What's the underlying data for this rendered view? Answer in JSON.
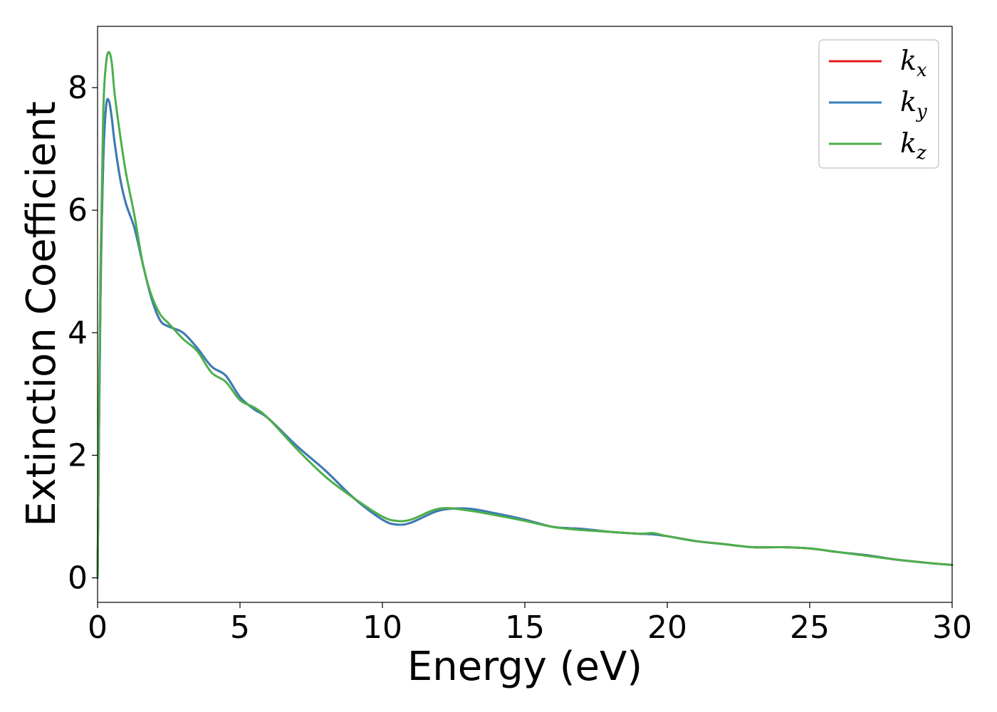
{
  "chart_data": {
    "type": "line",
    "xlabel": "Energy (eV)",
    "ylabel": "Extinction Coefficient",
    "xlim": [
      0,
      30
    ],
    "ylim": [
      -0.4,
      9.0
    ],
    "xticks": [
      0,
      5,
      10,
      15,
      20,
      25,
      30
    ],
    "yticks": [
      0,
      2,
      4,
      6,
      8
    ],
    "xtick_labels": [
      "0",
      "5",
      "10",
      "15",
      "20",
      "25",
      "30"
    ],
    "ytick_labels": [
      "0",
      "2",
      "4",
      "6",
      "8"
    ],
    "grid": false,
    "legend_position": "top-right",
    "series": [
      {
        "name": "kx",
        "legend_base": "k",
        "legend_sub": "x",
        "color": "#e41a1c",
        "x": [
          0,
          0.1,
          0.2,
          0.3,
          0.4,
          0.5,
          0.6,
          0.8,
          1.0,
          1.3,
          1.6,
          1.9,
          2.2,
          2.5,
          3.0,
          3.5,
          4.0,
          4.5,
          5.0,
          5.5,
          6.0,
          7.0,
          8.0,
          9.0,
          10.0,
          10.5,
          11.0,
          12.0,
          13.0,
          14.0,
          15.0,
          16.0,
          17.0,
          18.0,
          19.0,
          19.5,
          20.0,
          21.0,
          22.0,
          23.0,
          24.0,
          25.0,
          26.0,
          27.0,
          28.0,
          29.0,
          30.0
        ],
        "y": [
          0.0,
          4.5,
          6.8,
          7.7,
          7.78,
          7.5,
          7.1,
          6.5,
          6.1,
          5.7,
          5.1,
          4.55,
          4.2,
          4.1,
          4.0,
          3.75,
          3.45,
          3.3,
          2.95,
          2.75,
          2.6,
          2.15,
          1.75,
          1.3,
          0.95,
          0.87,
          0.9,
          1.1,
          1.13,
          1.05,
          0.95,
          0.83,
          0.8,
          0.75,
          0.72,
          0.71,
          0.68,
          0.6,
          0.55,
          0.5,
          0.5,
          0.48,
          0.42,
          0.37,
          0.3,
          0.25,
          0.21
        ]
      },
      {
        "name": "ky",
        "legend_base": "k",
        "legend_sub": "y",
        "color": "#377eb8",
        "x": [
          0,
          0.1,
          0.2,
          0.3,
          0.4,
          0.5,
          0.6,
          0.8,
          1.0,
          1.3,
          1.6,
          1.9,
          2.2,
          2.5,
          3.0,
          3.5,
          4.0,
          4.5,
          5.0,
          5.5,
          6.0,
          7.0,
          8.0,
          9.0,
          10.0,
          10.5,
          11.0,
          12.0,
          13.0,
          14.0,
          15.0,
          16.0,
          17.0,
          18.0,
          19.0,
          19.5,
          20.0,
          21.0,
          22.0,
          23.0,
          24.0,
          25.0,
          26.0,
          27.0,
          28.0,
          29.0,
          30.0
        ],
        "y": [
          0.0,
          4.5,
          6.8,
          7.7,
          7.78,
          7.5,
          7.1,
          6.5,
          6.1,
          5.7,
          5.1,
          4.55,
          4.2,
          4.1,
          4.0,
          3.75,
          3.45,
          3.3,
          2.95,
          2.75,
          2.6,
          2.15,
          1.75,
          1.3,
          0.95,
          0.87,
          0.9,
          1.1,
          1.13,
          1.05,
          0.95,
          0.83,
          0.8,
          0.75,
          0.72,
          0.71,
          0.68,
          0.6,
          0.55,
          0.5,
          0.5,
          0.48,
          0.42,
          0.37,
          0.3,
          0.25,
          0.21
        ]
      },
      {
        "name": "kz",
        "legend_base": "k",
        "legend_sub": "z",
        "color": "#4daf4a",
        "x": [
          0,
          0.1,
          0.2,
          0.3,
          0.4,
          0.5,
          0.6,
          0.8,
          1.0,
          1.3,
          1.6,
          1.9,
          2.2,
          2.5,
          3.0,
          3.5,
          4.0,
          4.5,
          5.0,
          5.5,
          6.0,
          7.0,
          8.0,
          9.0,
          10.0,
          10.5,
          11.0,
          12.0,
          13.0,
          14.0,
          15.0,
          16.0,
          17.0,
          18.0,
          19.0,
          19.5,
          20.0,
          21.0,
          22.0,
          23.0,
          24.0,
          25.0,
          26.0,
          27.0,
          28.0,
          29.0,
          30.0
        ],
        "y": [
          0.0,
          5.0,
          7.6,
          8.4,
          8.58,
          8.4,
          7.9,
          7.2,
          6.6,
          5.9,
          5.1,
          4.6,
          4.3,
          4.15,
          3.9,
          3.7,
          3.35,
          3.2,
          2.9,
          2.78,
          2.6,
          2.1,
          1.65,
          1.3,
          1.0,
          0.93,
          0.95,
          1.13,
          1.1,
          1.02,
          0.93,
          0.83,
          0.78,
          0.75,
          0.72,
          0.73,
          0.68,
          0.6,
          0.55,
          0.5,
          0.5,
          0.48,
          0.42,
          0.36,
          0.3,
          0.25,
          0.21
        ]
      }
    ]
  }
}
